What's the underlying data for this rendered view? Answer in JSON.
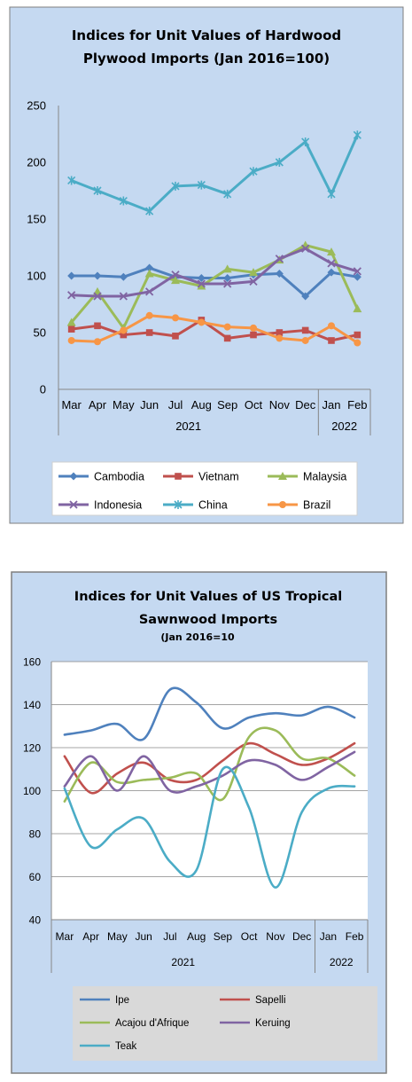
{
  "chart_data": [
    {
      "type": "line",
      "title_lines": [
        "Indices for Unit Values of Hardwood",
        "Plywood Imports (Jan 2016=100)"
      ],
      "subtitle": "",
      "categories": [
        "Mar",
        "Apr",
        "May",
        "Jun",
        "Jul",
        "Aug",
        "Sep",
        "Oct",
        "Nov",
        "Dec",
        "Jan",
        "Feb"
      ],
      "year_groups": [
        {
          "label": "2021",
          "span": 10
        },
        {
          "label": "2022",
          "span": 2
        }
      ],
      "ylim": [
        0,
        250
      ],
      "yticks": [
        "0",
        "50",
        "100",
        "150",
        "200",
        "250"
      ],
      "grid": false,
      "legend_position": "bottom",
      "series": [
        {
          "name": "Cambodia",
          "color": "#4F81BD",
          "marker": "diamond",
          "values": [
            100,
            100,
            99,
            107,
            99,
            98,
            98,
            101,
            102,
            82,
            103,
            99
          ]
        },
        {
          "name": "Vietnam",
          "color": "#C0504D",
          "marker": "square",
          "values": [
            53,
            56,
            48,
            50,
            47,
            61,
            45,
            48,
            50,
            52,
            43,
            48
          ]
        },
        {
          "name": "Malaysia",
          "color": "#9BBB59",
          "marker": "triangle",
          "values": [
            59,
            86,
            54,
            102,
            96,
            91,
            106,
            103,
            114,
            127,
            121,
            71
          ]
        },
        {
          "name": "Indonesia",
          "color": "#8064A2",
          "marker": "x",
          "values": [
            83,
            82,
            82,
            86,
            101,
            93,
            93,
            95,
            115,
            124,
            111,
            104
          ]
        },
        {
          "name": "China",
          "color": "#4BACC6",
          "marker": "star",
          "values": [
            184,
            175,
            166,
            157,
            179,
            180,
            172,
            192,
            200,
            218,
            172,
            224
          ]
        },
        {
          "name": "Brazil",
          "color": "#F79646",
          "marker": "circle",
          "values": [
            43,
            42,
            52,
            65,
            63,
            59,
            55,
            54,
            45,
            43,
            56,
            41
          ]
        }
      ]
    },
    {
      "type": "line",
      "title_lines": [
        "Indices for Unit Values of US Tropical",
        "Sawnwood Imports"
      ],
      "subtitle": "(Jan 2016=10",
      "categories": [
        "Mar",
        "Apr",
        "May",
        "Jun",
        "Jul",
        "Aug",
        "Sep",
        "Oct",
        "Nov",
        "Dec",
        "Jan",
        "Feb"
      ],
      "year_groups": [
        {
          "label": "2021",
          "span": 10
        },
        {
          "label": "2022",
          "span": 2
        }
      ],
      "ylim": [
        40,
        160
      ],
      "yticks": [
        "40",
        "60",
        "80",
        "100",
        "120",
        "140",
        "160"
      ],
      "grid": true,
      "legend_position": "bottom",
      "series": [
        {
          "name": "Ipe",
          "color": "#4F81BD",
          "values": [
            126,
            128,
            131,
            124,
            147,
            141,
            129,
            134,
            136,
            135,
            139,
            134
          ]
        },
        {
          "name": "Sapelli",
          "color": "#C0504D",
          "values": [
            116,
            99,
            108,
            113,
            105,
            105,
            114,
            122,
            117,
            112,
            115,
            122
          ]
        },
        {
          "name": "Acajou d'Afrique",
          "color": "#9BBB59",
          "values": [
            95,
            113,
            104,
            105,
            106,
            108,
            96,
            125,
            128,
            115,
            115,
            107
          ]
        },
        {
          "name": "Keruing",
          "color": "#8064A2",
          "values": [
            102,
            116,
            100,
            116,
            100,
            102,
            107,
            114,
            112,
            105,
            111,
            118
          ]
        },
        {
          "name": "Teak",
          "color": "#4BACC6",
          "values": [
            101,
            74,
            82,
            87,
            67,
            63,
            110,
            92,
            55,
            90,
            101,
            102
          ]
        }
      ]
    }
  ]
}
